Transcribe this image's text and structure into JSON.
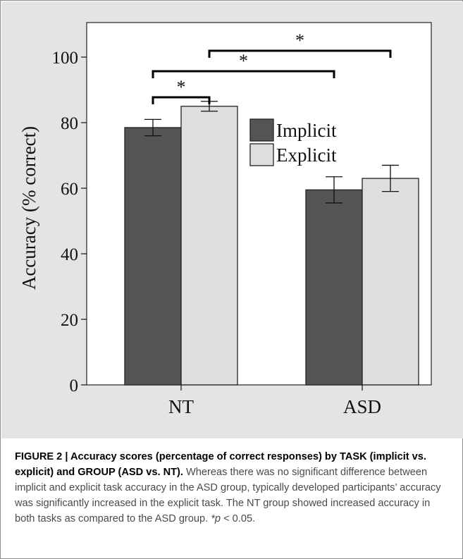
{
  "chart_data": {
    "type": "bar",
    "title": "",
    "xlabel": "",
    "ylabel": "Accuracy (% correct)",
    "ylim": [
      0,
      110
    ],
    "yticks": [
      0,
      20,
      40,
      60,
      80,
      100
    ],
    "categories": [
      "NT",
      "ASD"
    ],
    "series": [
      {
        "name": "Implicit",
        "color": "#555555",
        "values": [
          78.5,
          59.5
        ],
        "errors": [
          2.5,
          4.0
        ]
      },
      {
        "name": "Explicit",
        "color": "#dedede",
        "values": [
          85.0,
          63.0
        ],
        "errors": [
          1.5,
          4.0
        ]
      }
    ],
    "legend_position": "center-right",
    "grid": false,
    "significance": [
      {
        "from": [
          "NT",
          "Implicit"
        ],
        "to": [
          "NT",
          "Explicit"
        ],
        "label": "*"
      },
      {
        "from": [
          "NT",
          "Implicit"
        ],
        "to": [
          "ASD",
          "Implicit"
        ],
        "label": "*"
      },
      {
        "from": [
          "NT",
          "Explicit"
        ],
        "to": [
          "ASD",
          "Explicit"
        ],
        "label": "*"
      }
    ]
  },
  "caption": {
    "lead": "FIGURE 2 | Accuracy scores (percentage of correct responses) by TASK (implicit vs. explicit) and GROUP (ASD vs. NT).",
    "body": " Whereas there was no significant difference between implicit and explicit task accuracy in the ASD group, typically developed participants’ accuracy was significantly increased in the explicit task. The NT group showed increased accuracy in both tasks as compared to the ASD group. ",
    "p_symbol": "*p",
    "p_rest": " < 0.05."
  }
}
